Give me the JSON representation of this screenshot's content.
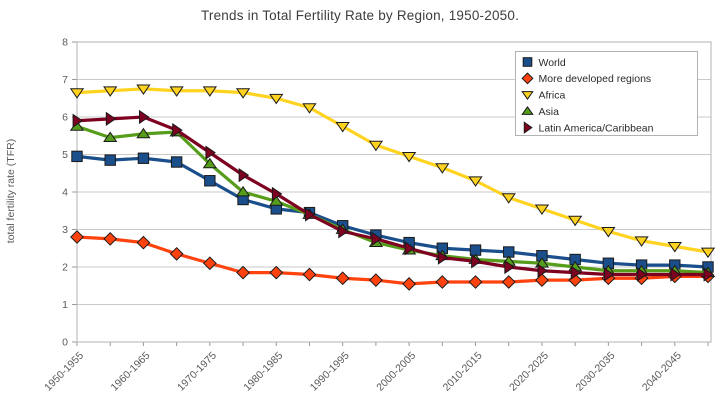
{
  "chart_data": {
    "type": "line",
    "title": "Trends in Total Fertility Rate by Region, 1950-2050.",
    "xlabel": "",
    "ylabel": "total fertility rate (TFR)",
    "ylim": [
      0,
      8
    ],
    "yticks": [
      0,
      1,
      2,
      3,
      4,
      5,
      6,
      7,
      8
    ],
    "grid": true,
    "legend_position": "top-right",
    "categories": [
      "1950-1955",
      "1955-1960",
      "1960-1965",
      "1965-1970",
      "1970-1975",
      "1975-1980",
      "1980-1985",
      "1985-1990",
      "1990-1995",
      "1995-2000",
      "2000-2005",
      "2005-2010",
      "2010-2015",
      "2015-2020",
      "2020-2025",
      "2025-2030",
      "2030-2035",
      "2035-2040",
      "2040-2045",
      "2045-2050"
    ],
    "x_labels_shown": [
      "1950-1955",
      "1960-1965",
      "1970-1975",
      "1980-1985",
      "1990-1995",
      "2000-2005",
      "2010-2015",
      "2020-2025",
      "2030-2035",
      "2040-2045"
    ],
    "series": [
      {
        "name": "World",
        "color": "#1A4F8C",
        "marker": "square",
        "values": [
          4.95,
          4.85,
          4.9,
          4.8,
          4.3,
          3.8,
          3.55,
          3.45,
          3.1,
          2.85,
          2.65,
          2.5,
          2.45,
          2.4,
          2.3,
          2.2,
          2.1,
          2.05,
          2.05,
          2.0
        ]
      },
      {
        "name": "More developed regions",
        "color": "#FF420E",
        "marker": "diamond",
        "values": [
          2.8,
          2.75,
          2.65,
          2.35,
          2.1,
          1.85,
          1.85,
          1.8,
          1.7,
          1.65,
          1.55,
          1.6,
          1.6,
          1.6,
          1.65,
          1.65,
          1.7,
          1.7,
          1.75,
          1.75
        ]
      },
      {
        "name": "Africa",
        "color": "#FFD320",
        "marker": "triangle-down",
        "values": [
          6.65,
          6.7,
          6.75,
          6.7,
          6.7,
          6.65,
          6.5,
          6.25,
          5.75,
          5.25,
          4.95,
          4.65,
          4.3,
          3.85,
          3.55,
          3.25,
          2.95,
          2.7,
          2.55,
          2.4
        ]
      },
      {
        "name": "Asia",
        "color": "#579D1C",
        "marker": "triangle-up",
        "values": [
          5.75,
          5.45,
          5.55,
          5.6,
          4.75,
          4.0,
          3.75,
          3.4,
          3.0,
          2.65,
          2.45,
          2.3,
          2.2,
          2.15,
          2.1,
          2.0,
          1.9,
          1.9,
          1.9,
          1.85
        ]
      },
      {
        "name": "Latin America/Caribbean",
        "color": "#7E0021",
        "marker": "triangle-right",
        "values": [
          5.9,
          5.95,
          6.0,
          5.65,
          5.05,
          4.45,
          3.95,
          3.4,
          2.95,
          2.75,
          2.5,
          2.25,
          2.15,
          2.0,
          1.9,
          1.85,
          1.8,
          1.8,
          1.8,
          1.8
        ]
      }
    ],
    "colors": {
      "gridline": "#c9c9c9",
      "plot_border": "#b3b3b3",
      "tick": "#999999",
      "tick_label": "#5a5a5a",
      "title_text": "#3d3d3d",
      "legend_border": "#b3b3b3",
      "legend_text": "#2b2b2b",
      "marker_outline": "#1a1a1a"
    }
  }
}
